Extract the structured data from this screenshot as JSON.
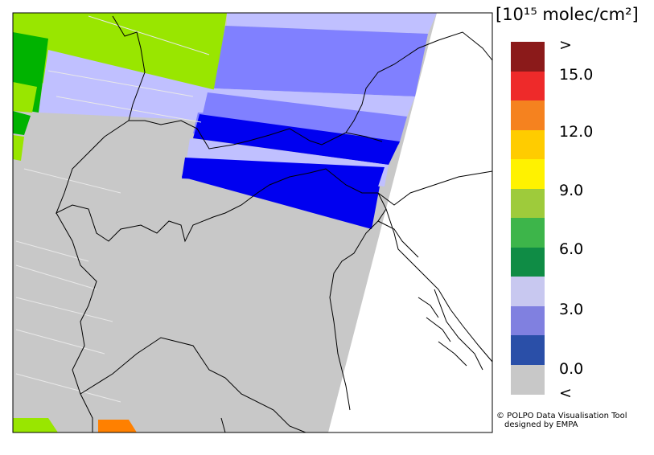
{
  "legend": {
    "unit_label": "[10¹⁵ molec/cm²]",
    "ticks": [
      ">",
      "15.0",
      "12.0",
      "9.0",
      "6.0",
      "3.0",
      "0.0",
      "<"
    ],
    "swatches": [
      "#8b1a1a",
      "#ee2a2a",
      "#f5821f",
      "#ffcc00",
      "#fff200",
      "#9ecb3b",
      "#3db54a",
      "#0f8c45",
      "#c8c8f0",
      "#8080e0",
      "#2a4fa8",
      "#c8c8c8"
    ]
  },
  "credit": {
    "line1": "© POLPO Data Visualisation Tool",
    "line2": "designed by EMPA"
  },
  "map": {
    "background_color": "#c8c8c8",
    "ocean_color": "#ffffff",
    "colors": {
      "green_light": "#99e600",
      "green_dark": "#00b300",
      "lavender": "#c0c0ff",
      "blue_mid": "#8080ff",
      "blue": "#0000f0",
      "orange": "#ff8000"
    }
  }
}
